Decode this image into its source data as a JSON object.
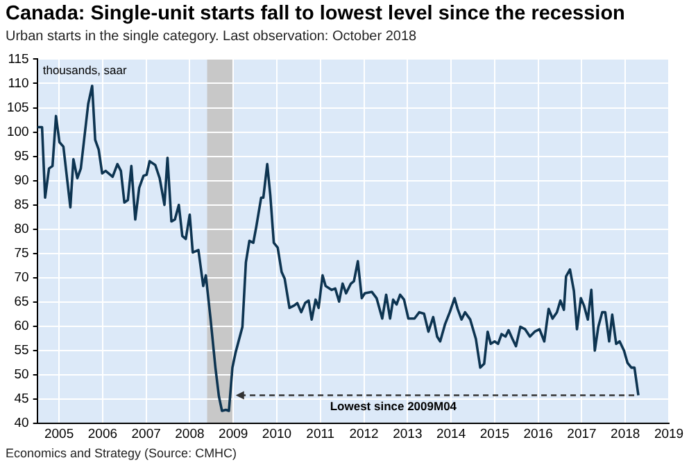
{
  "chart_data": {
    "type": "line",
    "title": "Canada: Single-unit starts fall to lowest level since the recession",
    "subtitle": "Urban starts in the single category. Last observation: October 2018",
    "ylabel": "thousands, saar",
    "x": [
      2005.0,
      2005.11,
      2005.18,
      2005.27,
      2005.35,
      2005.43,
      2005.51,
      2005.6,
      2005.76,
      2005.83,
      2005.92,
      2006.0,
      2006.17,
      2006.26,
      2006.33,
      2006.41,
      2006.49,
      2006.57,
      2006.73,
      2006.84,
      2006.92,
      2007.0,
      2007.08,
      2007.16,
      2007.25,
      2007.34,
      2007.44,
      2007.51,
      2007.58,
      2007.71,
      2007.81,
      2007.92,
      2007.99,
      2008.08,
      2008.16,
      2008.25,
      2008.33,
      2008.41,
      2008.5,
      2008.57,
      2008.7,
      2008.81,
      2008.87,
      2008.98,
      2009.09,
      2009.17,
      2009.24,
      2009.33,
      2009.4,
      2009.48,
      2009.55,
      2009.71,
      2009.79,
      2009.87,
      2009.96,
      2010.03,
      2010.14,
      2010.19,
      2010.28,
      2010.35,
      2010.43,
      2010.52,
      2010.61,
      2010.68,
      2010.79,
      2010.9,
      2010.97,
      2011.06,
      2011.15,
      2011.23,
      2011.3,
      2011.39,
      2011.46,
      2011.55,
      2011.62,
      2011.76,
      2011.84,
      2011.93,
      2012.01,
      2012.09,
      2012.2,
      2012.27,
      2012.36,
      2012.45,
      2012.52,
      2012.68,
      2012.79,
      2012.92,
      2013.01,
      2013.1,
      2013.17,
      2013.25,
      2013.33,
      2013.42,
      2013.52,
      2013.66,
      2013.77,
      2013.88,
      2013.98,
      2014.09,
      2014.18,
      2014.25,
      2014.36,
      2014.47,
      2014.58,
      2014.65,
      2014.74,
      2014.82,
      2014.94,
      2015.07,
      2015.17,
      2015.26,
      2015.34,
      2015.41,
      2015.5,
      2015.58,
      2015.66,
      2015.75,
      2015.82,
      2015.91,
      2015.99,
      2016.09,
      2016.2,
      2016.31,
      2016.42,
      2016.53,
      2016.64,
      2016.74,
      2016.83,
      2016.93,
      2017.01,
      2017.09,
      2017.14,
      2017.23,
      2017.32,
      2017.39,
      2017.48,
      2017.55,
      2017.64,
      2017.72,
      2017.8,
      2017.88,
      2017.97,
      2018.04,
      2018.13,
      2018.2,
      2018.29,
      2018.37,
      2018.47,
      2018.55,
      2018.64,
      2018.71,
      2018.8
    ],
    "series": [
      {
        "color": "#0d3451",
        "values": [
          101,
          101,
          86.5,
          92.5,
          93,
          103.3,
          97.9,
          97,
          84.5,
          94.4,
          90.5,
          92.5,
          105.8,
          109.5,
          98.4,
          96.4,
          91.5,
          92,
          90.8,
          93.4,
          92,
          85.5,
          86,
          93,
          82,
          88.5,
          91,
          91.2,
          94,
          93.2,
          90.5,
          85,
          94.7,
          81.6,
          82,
          85,
          78.6,
          78,
          83,
          75.2,
          75.7,
          68.3,
          70.5,
          61.4,
          51.5,
          45.6,
          42.6,
          42.8,
          42.6,
          51.5,
          54.5,
          59.9,
          73.2,
          77.6,
          77.2,
          80.6,
          86.5,
          86.5,
          93.4,
          87,
          77.2,
          76.2,
          71.2,
          69.8,
          63.8,
          64.3,
          64.8,
          62.9,
          64.8,
          65.3,
          61.4,
          65.5,
          63.8,
          70.5,
          68.3,
          67.5,
          67.8,
          65.1,
          68.8,
          66.8,
          68.8,
          69.3,
          73.4,
          65.8,
          66.8,
          67.1,
          65.8,
          61.6,
          66.5,
          61.6,
          65.5,
          64.5,
          66.5,
          65.5,
          61.6,
          61.6,
          62.9,
          62.6,
          58.9,
          61.9,
          57.9,
          56.9,
          60.4,
          62.9,
          65.8,
          63.6,
          61.4,
          62.9,
          61.4,
          57.4,
          51.5,
          52.3,
          58.9,
          56.4,
          56.9,
          56.4,
          58.4,
          57.9,
          59.2,
          57.4,
          55.9,
          59.9,
          59.4,
          57.9,
          58.9,
          59.4,
          56.9,
          63.6,
          61.6,
          62.9,
          65.3,
          63.4,
          70.3,
          71.7,
          67.3,
          59.4,
          65.8,
          64.3,
          61.4,
          67.5,
          55,
          59.9,
          62.9,
          62.9,
          56.9,
          62.4,
          56.4,
          56.9,
          55,
          52.5,
          51.5,
          51.5,
          45.8
        ]
      }
    ],
    "xlim": [
      2005,
      2019.5
    ],
    "xticks": [
      {
        "value": 2005.5,
        "label": "2005"
      },
      {
        "value": 2006.5,
        "label": "2006"
      },
      {
        "value": 2007.5,
        "label": "2007"
      },
      {
        "value": 2008.5,
        "label": "2008"
      },
      {
        "value": 2009.5,
        "label": "2009"
      },
      {
        "value": 2010.5,
        "label": "2010"
      },
      {
        "value": 2011.5,
        "label": "2011"
      },
      {
        "value": 2012.5,
        "label": "2012"
      },
      {
        "value": 2013.5,
        "label": "2013"
      },
      {
        "value": 2014.5,
        "label": "2014"
      },
      {
        "value": 2015.5,
        "label": "2015"
      },
      {
        "value": 2016.5,
        "label": "2016"
      },
      {
        "value": 2017.5,
        "label": "2017"
      },
      {
        "value": 2018.5,
        "label": "2018"
      },
      {
        "value": 2019.5,
        "label": "2019"
      }
    ],
    "ylim": [
      40,
      115
    ],
    "yticks": [
      40,
      45,
      50,
      55,
      60,
      65,
      70,
      75,
      80,
      85,
      90,
      95,
      100,
      105,
      110,
      115
    ],
    "bands": [
      {
        "axis": "x",
        "from": 2008.9,
        "to": 2009.51,
        "color": "#c8c8c8"
      }
    ],
    "annotations": [
      "Lowest since 2009M04",
      "Economics and Strategy (Source: CMHC)"
    ],
    "grid": true,
    "legend": false,
    "marker": "none",
    "line_style": "solid"
  }
}
